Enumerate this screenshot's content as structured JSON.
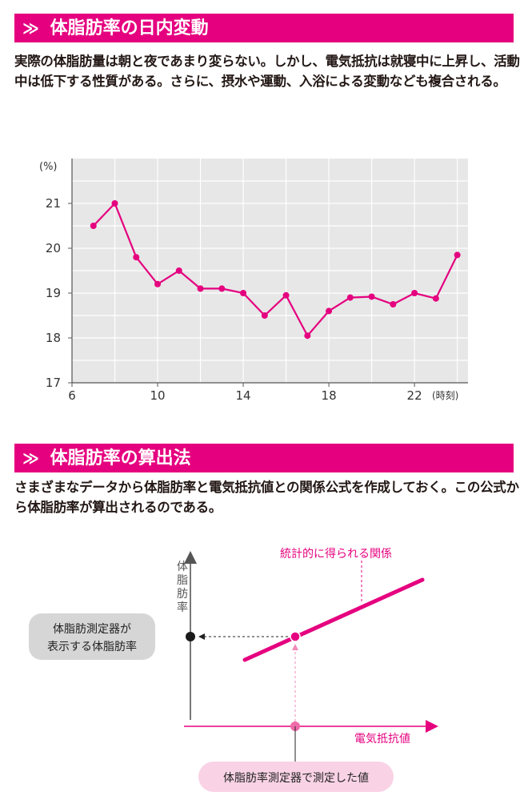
{
  "section1": {
    "marker": "≫",
    "title": "体脂肪率の日内変動",
    "body": "実際の体脂肪量は朝と夜であまり変らない。しかし、電気抵抗は就寝中に上昇し、活動中は低下する性質がある。さらに、摂水や運動、入浴による変動なども複合される。"
  },
  "section2": {
    "marker": "≫",
    "title": "体脂肪率の算出法",
    "body": "さまざまなデータから体脂肪率と電気抵抗値との関係公式を作成しておく。この公式から体脂肪率が算出されるのである。"
  },
  "chart_data": {
    "type": "line",
    "title": "",
    "xlabel": "(時刻)",
    "ylabel": "(%)",
    "x": [
      7,
      8,
      9,
      10,
      11,
      12,
      13,
      14,
      15,
      16,
      17,
      18,
      19,
      20,
      21,
      22,
      23,
      24
    ],
    "series": [
      {
        "values": [
          20.5,
          21.0,
          19.8,
          19.2,
          19.5,
          19.1,
          19.1,
          19.0,
          18.5,
          18.95,
          18.05,
          18.6,
          18.9,
          18.92,
          18.75,
          19.0,
          18.88,
          19.85
        ]
      }
    ],
    "xlim": [
      6,
      24.5
    ],
    "ylim": [
      17,
      22
    ],
    "x_ticks": [
      6,
      10,
      14,
      18,
      22
    ],
    "y_ticks": [
      17,
      18,
      19,
      20,
      21
    ],
    "x_tick_labels": [
      "6",
      "10",
      "14",
      "18",
      "22"
    ],
    "y_tick_labels": [
      "17",
      "18",
      "19",
      "20",
      "21"
    ],
    "grid": true,
    "line_color": "#e5007f",
    "background": "#e7e7e7"
  },
  "diagram": {
    "y_axis_label": "体脂肪率",
    "x_axis_label": "電気抵抗値",
    "relation_label": "統計的に得られる関係",
    "result_label_line1": "体脂肪測定器が",
    "result_label_line2": "表示する体脂肪率",
    "measured_label": "体脂肪率測定器で測定した値",
    "accent": "#e5007f",
    "axis_color": "#444444"
  }
}
